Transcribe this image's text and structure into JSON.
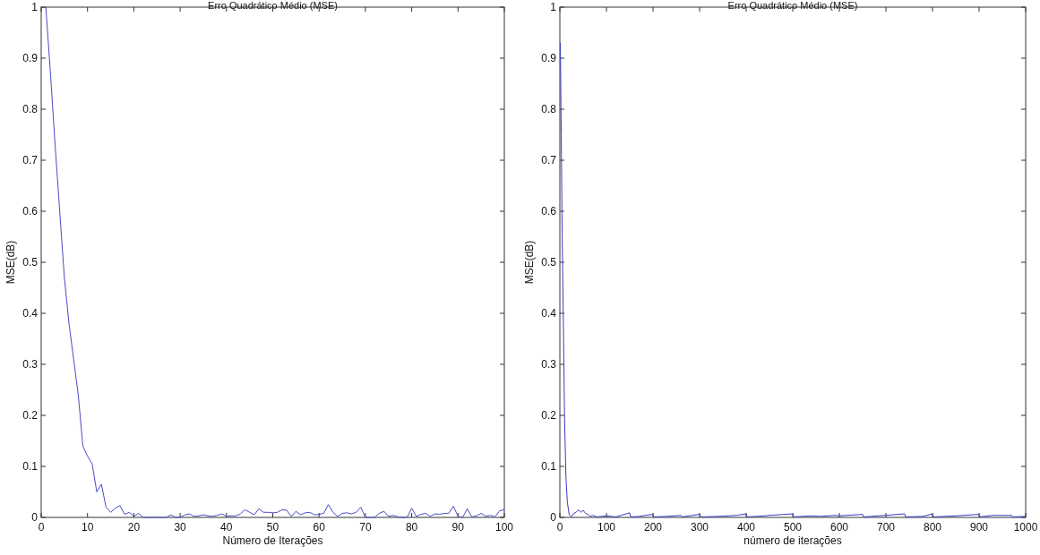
{
  "chart_data": [
    {
      "type": "line",
      "title": "Erro Quadrático Médio (MSE)",
      "xlabel": "Número de Iterações",
      "ylabel": "MSE(dB)",
      "xlim": [
        0,
        100
      ],
      "ylim": [
        0,
        1
      ],
      "xticks": [
        0,
        10,
        20,
        30,
        40,
        50,
        60,
        70,
        80,
        90,
        100
      ],
      "yticks": [
        0,
        0.1,
        0.2,
        0.3,
        0.4,
        0.5,
        0.6,
        0.7,
        0.8,
        0.9,
        1
      ],
      "grid": false,
      "series": [
        {
          "color": "#4a4ac8",
          "x": [
            1,
            2,
            3,
            4,
            5,
            6,
            7,
            8,
            9,
            10,
            11,
            12,
            13,
            14,
            15,
            16,
            17,
            18,
            19,
            20,
            21,
            22,
            23,
            24,
            25,
            26,
            27,
            28,
            29,
            30,
            31,
            32,
            33,
            34,
            35,
            36,
            37,
            38,
            39,
            40,
            41,
            42,
            43,
            44,
            45,
            46,
            47,
            48,
            49,
            50,
            51,
            52,
            53,
            54,
            55,
            56,
            57,
            58,
            59,
            60,
            61,
            62,
            63,
            64,
            65,
            66,
            67,
            68,
            69,
            70,
            71,
            72,
            73,
            74,
            75,
            76,
            77,
            78,
            79,
            80,
            81,
            82,
            83,
            84,
            85,
            86,
            87,
            88,
            89,
            90,
            91,
            92,
            93,
            94,
            95,
            96,
            97,
            98,
            99,
            100
          ],
          "values": [
            1,
            0.87,
            0.73,
            0.6,
            0.47,
            0.38,
            0.31,
            0.24,
            0.14,
            0.12,
            0.105,
            0.05,
            0.065,
            0.02,
            0.01,
            0.018,
            0.023,
            0.006,
            0.01,
            0.002,
            0.008,
            0,
            0,
            0,
            0,
            0,
            0,
            0.005,
            0,
            0,
            0.005,
            0.007,
            0.002,
            0.003,
            0.005,
            0.003,
            0.002,
            0.004,
            0.007,
            0.002,
            0.003,
            0.003,
            0.007,
            0.015,
            0.01,
            0.005,
            0.017,
            0.01,
            0.01,
            0.009,
            0.01,
            0.015,
            0.014,
            0.002,
            0.012,
            0.005,
            0.009,
            0.01,
            0.005,
            0.006,
            0.008,
            0.025,
            0.01,
            0.002,
            0.008,
            0.009,
            0.007,
            0.01,
            0.02,
            0,
            0,
            0,
            0.008,
            0.012,
            0.002,
            0.004,
            0.001,
            0,
            0,
            0.018,
            0.002,
            0.006,
            0.008,
            0.002,
            0.007,
            0.006,
            0.008,
            0.008,
            0.022,
            0.002,
            0,
            0.017,
            0.001,
            0.003,
            0.008,
            0.002,
            0.004,
            0.001,
            0.013,
            0.015
          ]
        }
      ]
    },
    {
      "type": "line",
      "title": "Erro Quadrático Médio (MSE)",
      "xlabel": "número de iterações",
      "ylabel": "MSE(dB)",
      "xlim": [
        0,
        1000
      ],
      "ylim": [
        0,
        1
      ],
      "xticks": [
        0,
        100,
        200,
        300,
        400,
        500,
        600,
        700,
        800,
        900,
        1000
      ],
      "yticks": [
        0,
        0.1,
        0.2,
        0.3,
        0.4,
        0.5,
        0.6,
        0.7,
        0.8,
        0.9,
        1
      ],
      "grid": false,
      "series": [
        {
          "color": "#3a3ac8",
          "x": [
            1,
            3,
            5,
            8,
            10,
            13,
            16,
            20,
            25,
            30,
            35,
            40,
            45,
            50,
            55,
            60,
            65,
            70,
            80,
            100,
            120,
            150,
            152,
            170,
            200,
            202,
            230,
            260,
            262,
            300,
            302,
            340,
            380,
            400,
            402,
            440,
            450,
            500,
            502,
            540,
            560,
            590,
            600,
            650,
            652,
            700,
            740,
            742,
            780,
            800,
            802,
            850,
            900,
            902,
            930,
            970,
            972,
            1000
          ],
          "values": [
            0.93,
            0.75,
            0.55,
            0.35,
            0.2,
            0.08,
            0.03,
            0.005,
            0.001,
            0.008,
            0.01,
            0.015,
            0.01,
            0.014,
            0.008,
            0.006,
            0.002,
            0.004,
            0.001,
            0.003,
            0.001,
            0.009,
            0.001,
            0.002,
            0.006,
            0.001,
            0.002,
            0.004,
            0.001,
            0.006,
            0.001,
            0.002,
            0.004,
            0.007,
            0.001,
            0.003,
            0.004,
            0.007,
            0.001,
            0.003,
            0.002,
            0.004,
            0.003,
            0.006,
            0.001,
            0.004,
            0.007,
            0.001,
            0.002,
            0.007,
            0.001,
            0.003,
            0.006,
            0.001,
            0.004,
            0.004,
            0.001,
            0.002
          ]
        }
      ]
    }
  ]
}
